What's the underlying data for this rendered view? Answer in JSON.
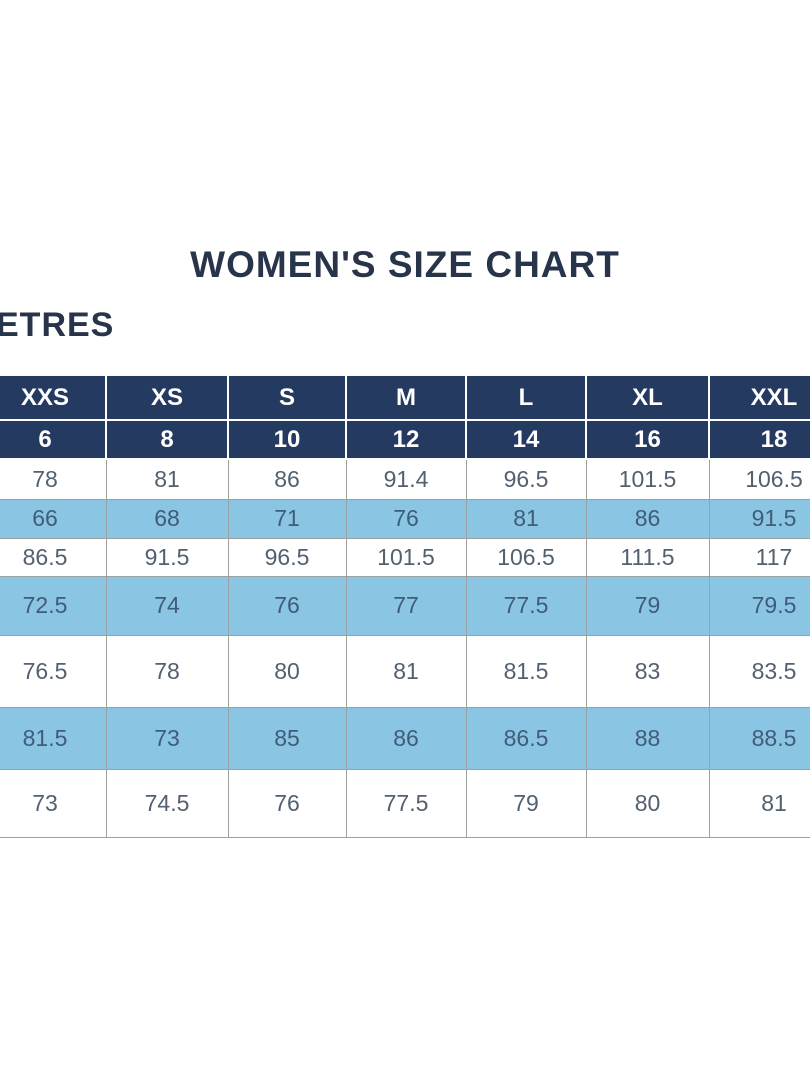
{
  "page": {
    "title": "WOMEN'S SIZE CHART",
    "unit_label": "ETRES"
  },
  "colors": {
    "header-bg": "#243a60",
    "header-text": "#ffffff",
    "alt-row-bg": "#8ac5e4",
    "title-text": "#273449",
    "body-text": "#52606f",
    "alt-body-text": "#3f5d79",
    "grid-line": "#9aa0a4",
    "page-bg": "#ffffff"
  },
  "chart_data": {
    "type": "table",
    "title": "WOMEN'S SIZE CHART",
    "size_labels": [
      "XXS",
      "XS",
      "S",
      "M",
      "L",
      "XL",
      "XXL"
    ],
    "size_numbers": [
      "6",
      "8",
      "10",
      "12",
      "14",
      "16",
      "18"
    ],
    "rows": [
      [
        "78",
        "81",
        "86",
        "91.4",
        "96.5",
        "101.5",
        "106.5"
      ],
      [
        "66",
        "68",
        "71",
        "76",
        "81",
        "86",
        "91.5"
      ],
      [
        "86.5",
        "91.5",
        "96.5",
        "101.5",
        "106.5",
        "111.5",
        "117"
      ],
      [
        "72.5",
        "74",
        "76",
        "77",
        "77.5",
        "79",
        "79.5"
      ],
      [
        "76.5",
        "78",
        "80",
        "81",
        "81.5",
        "83",
        "83.5"
      ],
      [
        "81.5",
        "73",
        "85",
        "86",
        "86.5",
        "88",
        "88.5"
      ],
      [
        "73",
        "74.5",
        "76",
        "77.5",
        "79",
        "80",
        "81"
      ]
    ],
    "layout_hints": {
      "alternating_row_shading": "even rows light blue, odd rows white",
      "left_and_right_columns_cropped": true,
      "grid": "on"
    }
  }
}
